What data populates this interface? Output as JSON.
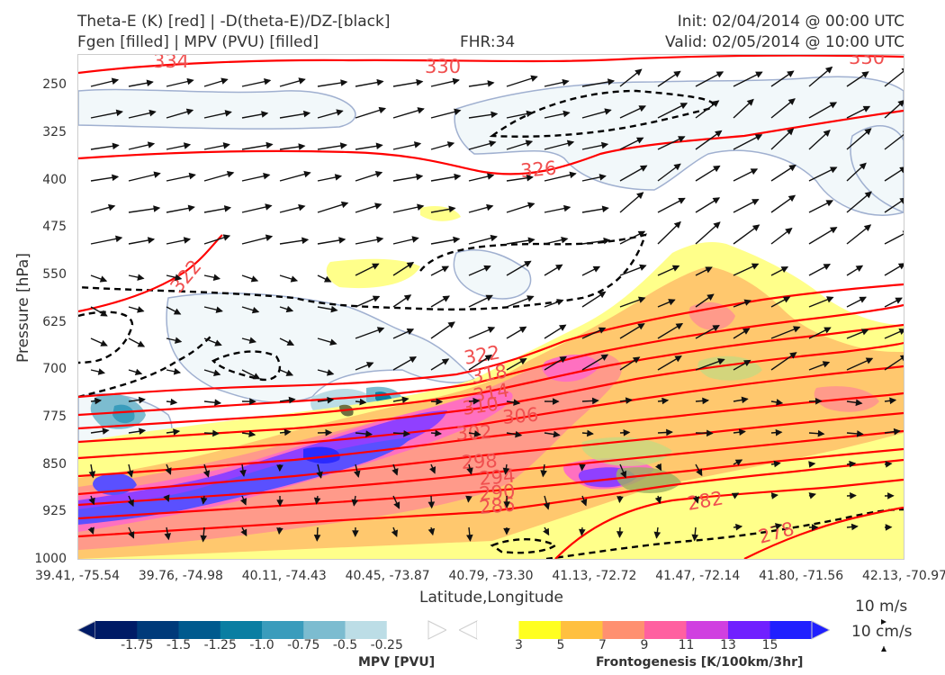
{
  "header": {
    "title_line1": "Theta-E (K) [red] | -D(theta-E)/DZ-[black]",
    "title_line2": "Fgen [filled] | MPV (PVU) [filled]",
    "fhr": "FHR:34",
    "init": "Init: 02/04/2014 @ 00:00 UTC",
    "valid": "Valid: 02/05/2014 @ 10:00 UTC"
  },
  "vector_key": {
    "speed_label": "10 m/s",
    "vertical_label": "10 cm/s"
  },
  "colors": {
    "theta_e": "#ff0000",
    "theta_e_labels": "#f05050",
    "stability": "#000000",
    "mpv_outline": "#a0b0d0",
    "mpv_fill": [
      "#001b66",
      "#003a7a",
      "#005a8e",
      "#0a7ea2",
      "#3a9cbc",
      "#7cbcd0",
      "#bcdde6",
      "#ffffff"
    ],
    "fgen_fill": [
      "#ffffff",
      "#ffff20",
      "#ffc040",
      "#ff9070",
      "#ff60a0",
      "#d040e0",
      "#7020ff",
      "#2020ff"
    ]
  },
  "chart_data": {
    "type": "cross-section",
    "xlabel": "Latitude,Longitude",
    "ylabel": "Pressure [hPa]",
    "x_ticks": [
      "39.41, -75.54",
      "39.76, -74.98",
      "40.11, -74.43",
      "40.45, -73.87",
      "40.79, -73.30",
      "41.13, -72.72",
      "41.47, -72.14",
      "41.80, -71.56",
      "42.13, -70.97"
    ],
    "y_ticks": [
      "250",
      "325",
      "400",
      "475",
      "550",
      "625",
      "700",
      "775",
      "850",
      "925",
      "1000"
    ],
    "y_range": [
      200,
      1000
    ],
    "theta_e_contours": [
      {
        "value": 334,
        "label": "334"
      },
      {
        "value": 330,
        "label": "330"
      },
      {
        "value": 326,
        "label": "326"
      },
      {
        "value": 322,
        "label": "322"
      },
      {
        "value": 318,
        "label": "318"
      },
      {
        "value": 314,
        "label": "314"
      },
      {
        "value": 310,
        "label": "310"
      },
      {
        "value": 306,
        "label": "306"
      },
      {
        "value": 302,
        "label": "302"
      },
      {
        "value": 298,
        "label": "298"
      },
      {
        "value": 294,
        "label": "294"
      },
      {
        "value": 290,
        "label": "290"
      },
      {
        "value": 286,
        "label": "286"
      },
      {
        "value": 282,
        "label": "282"
      },
      {
        "value": 278,
        "label": "278"
      }
    ],
    "mpv_colorbar": {
      "title": "MPV [PVU]",
      "ticks": [
        "-1.75",
        "-1.5",
        "-1.25",
        "-1.0",
        "-0.75",
        "-0.5",
        "-0.25"
      ]
    },
    "fgen_colorbar": {
      "title": "Frontogenesis [K/100km/3hr]",
      "ticks": [
        "3",
        "5",
        "7",
        "9",
        "11",
        "13",
        "15"
      ]
    }
  }
}
